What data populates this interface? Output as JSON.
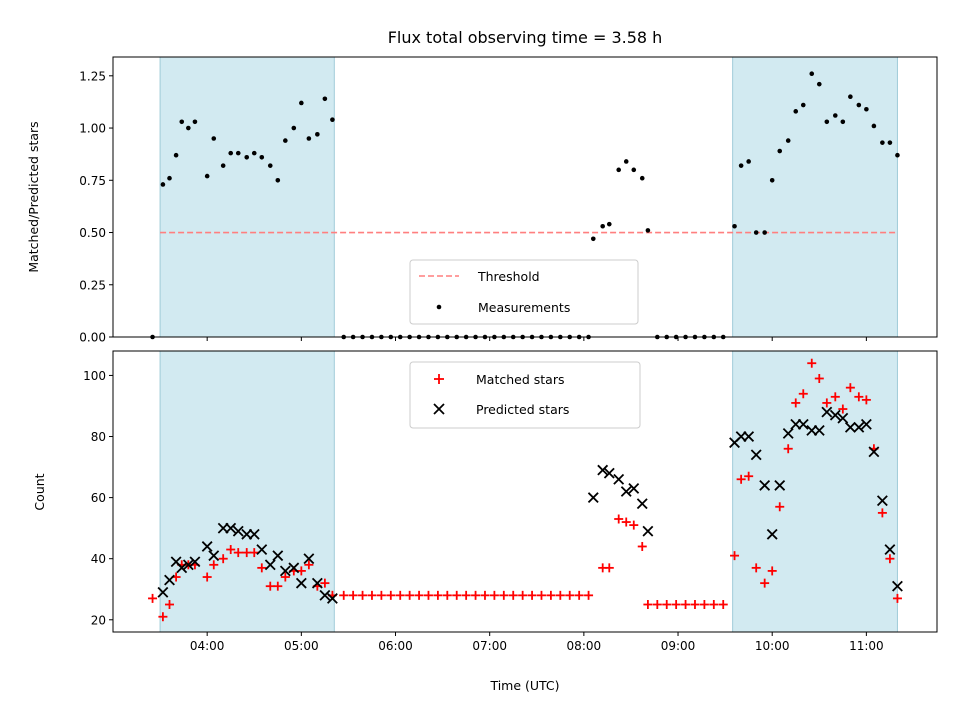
{
  "chart_data": [
    {
      "type": "scatter",
      "title": "Flux total observing time = 3.58 h",
      "ylabel": "Matched/Predicted stars",
      "xlabel": "",
      "x_unit": "hours UTC",
      "xlim": [
        3.0,
        11.75
      ],
      "ylim": [
        0.0,
        1.34
      ],
      "yticks": [
        "0.00",
        "0.25",
        "0.50",
        "0.75",
        "1.00",
        "1.25"
      ],
      "ytick_values": [
        0.0,
        0.25,
        0.5,
        0.75,
        1.0,
        1.25
      ],
      "shaded_spans": [
        [
          3.5,
          5.35
        ],
        [
          9.58,
          11.33
        ]
      ],
      "shade_color": "#add8e6",
      "grid": false,
      "legend_position": "lower center",
      "series": [
        {
          "name": "Threshold",
          "kind": "hline",
          "y": 0.5,
          "x_range": [
            3.5,
            11.33
          ],
          "color": "#ff7f7f",
          "style": "dashed"
        },
        {
          "name": "Measurements",
          "kind": "scatter",
          "marker": "dot",
          "color": "#000000",
          "points": [
            [
              3.42,
              0.0
            ],
            [
              3.53,
              0.73
            ],
            [
              3.6,
              0.76
            ],
            [
              3.67,
              0.87
            ],
            [
              3.73,
              1.03
            ],
            [
              3.8,
              1.0
            ],
            [
              3.87,
              1.03
            ],
            [
              4.0,
              0.77
            ],
            [
              4.07,
              0.95
            ],
            [
              4.17,
              0.82
            ],
            [
              4.25,
              0.88
            ],
            [
              4.33,
              0.88
            ],
            [
              4.42,
              0.86
            ],
            [
              4.5,
              0.88
            ],
            [
              4.58,
              0.86
            ],
            [
              4.67,
              0.82
            ],
            [
              4.75,
              0.75
            ],
            [
              4.83,
              0.94
            ],
            [
              4.92,
              1.0
            ],
            [
              5.0,
              1.12
            ],
            [
              5.08,
              0.95
            ],
            [
              5.17,
              0.97
            ],
            [
              5.25,
              1.14
            ],
            [
              5.33,
              1.04
            ],
            [
              5.45,
              0.0
            ],
            [
              5.55,
              0.0
            ],
            [
              5.65,
              0.0
            ],
            [
              5.75,
              0.0
            ],
            [
              5.85,
              0.0
            ],
            [
              5.95,
              0.0
            ],
            [
              6.05,
              0.0
            ],
            [
              6.15,
              0.0
            ],
            [
              6.25,
              0.0
            ],
            [
              6.35,
              0.0
            ],
            [
              6.45,
              0.0
            ],
            [
              6.55,
              0.0
            ],
            [
              6.65,
              0.0
            ],
            [
              6.75,
              0.0
            ],
            [
              6.85,
              0.0
            ],
            [
              6.95,
              0.0
            ],
            [
              7.05,
              0.0
            ],
            [
              7.15,
              0.0
            ],
            [
              7.25,
              0.0
            ],
            [
              7.35,
              0.0
            ],
            [
              7.45,
              0.0
            ],
            [
              7.55,
              0.0
            ],
            [
              7.65,
              0.0
            ],
            [
              7.75,
              0.0
            ],
            [
              7.85,
              0.0
            ],
            [
              7.95,
              0.0
            ],
            [
              8.05,
              0.0
            ],
            [
              8.1,
              0.47
            ],
            [
              8.2,
              0.53
            ],
            [
              8.27,
              0.54
            ],
            [
              8.37,
              0.8
            ],
            [
              8.45,
              0.84
            ],
            [
              8.53,
              0.8
            ],
            [
              8.62,
              0.76
            ],
            [
              8.68,
              0.51
            ],
            [
              8.78,
              0.0
            ],
            [
              8.88,
              0.0
            ],
            [
              8.98,
              0.0
            ],
            [
              9.08,
              0.0
            ],
            [
              9.18,
              0.0
            ],
            [
              9.28,
              0.0
            ],
            [
              9.38,
              0.0
            ],
            [
              9.48,
              0.0
            ],
            [
              9.6,
              0.53
            ],
            [
              9.67,
              0.82
            ],
            [
              9.75,
              0.84
            ],
            [
              9.83,
              0.5
            ],
            [
              9.92,
              0.5
            ],
            [
              10.0,
              0.75
            ],
            [
              10.08,
              0.89
            ],
            [
              10.17,
              0.94
            ],
            [
              10.25,
              1.08
            ],
            [
              10.33,
              1.11
            ],
            [
              10.42,
              1.26
            ],
            [
              10.5,
              1.21
            ],
            [
              10.58,
              1.03
            ],
            [
              10.67,
              1.06
            ],
            [
              10.75,
              1.03
            ],
            [
              10.83,
              1.15
            ],
            [
              10.92,
              1.11
            ],
            [
              11.0,
              1.09
            ],
            [
              11.08,
              1.01
            ],
            [
              11.17,
              0.93
            ],
            [
              11.25,
              0.93
            ],
            [
              11.33,
              0.87
            ]
          ]
        }
      ]
    },
    {
      "type": "scatter",
      "title": "",
      "ylabel": "Count",
      "xlabel": "Time (UTC)",
      "x_unit": "hours UTC",
      "xlim": [
        3.0,
        11.75
      ],
      "ylim": [
        16,
        108
      ],
      "xticks": [
        "04:00",
        "05:00",
        "06:00",
        "07:00",
        "08:00",
        "09:00",
        "10:00",
        "11:00"
      ],
      "xtick_values": [
        4,
        5,
        6,
        7,
        8,
        9,
        10,
        11
      ],
      "yticks": [
        "20",
        "40",
        "60",
        "80",
        "100"
      ],
      "ytick_values": [
        20,
        40,
        60,
        80,
        100
      ],
      "shaded_spans": [
        [
          3.5,
          5.35
        ],
        [
          9.58,
          11.33
        ]
      ],
      "shade_color": "#add8e6",
      "grid": false,
      "legend_position": "upper center",
      "series": [
        {
          "name": "Matched stars",
          "kind": "scatter",
          "marker": "plus",
          "color": "#ff0000",
          "points": [
            [
              3.42,
              27
            ],
            [
              3.53,
              21
            ],
            [
              3.6,
              25
            ],
            [
              3.67,
              34
            ],
            [
              3.73,
              38
            ],
            [
              3.8,
              38
            ],
            [
              3.87,
              38
            ],
            [
              4.0,
              34
            ],
            [
              4.07,
              38
            ],
            [
              4.17,
              40
            ],
            [
              4.25,
              43
            ],
            [
              4.33,
              42
            ],
            [
              4.42,
              42
            ],
            [
              4.5,
              42
            ],
            [
              4.58,
              37
            ],
            [
              4.67,
              31
            ],
            [
              4.75,
              31
            ],
            [
              4.83,
              34
            ],
            [
              4.92,
              36
            ],
            [
              5.0,
              36
            ],
            [
              5.08,
              38
            ],
            [
              5.17,
              31
            ],
            [
              5.25,
              32
            ],
            [
              5.33,
              28
            ],
            [
              5.45,
              28
            ],
            [
              5.55,
              28
            ],
            [
              5.65,
              28
            ],
            [
              5.75,
              28
            ],
            [
              5.85,
              28
            ],
            [
              5.95,
              28
            ],
            [
              6.05,
              28
            ],
            [
              6.15,
              28
            ],
            [
              6.25,
              28
            ],
            [
              6.35,
              28
            ],
            [
              6.45,
              28
            ],
            [
              6.55,
              28
            ],
            [
              6.65,
              28
            ],
            [
              6.75,
              28
            ],
            [
              6.85,
              28
            ],
            [
              6.95,
              28
            ],
            [
              7.05,
              28
            ],
            [
              7.15,
              28
            ],
            [
              7.25,
              28
            ],
            [
              7.35,
              28
            ],
            [
              7.45,
              28
            ],
            [
              7.55,
              28
            ],
            [
              7.65,
              28
            ],
            [
              7.75,
              28
            ],
            [
              7.85,
              28
            ],
            [
              7.95,
              28
            ],
            [
              8.05,
              28
            ],
            [
              8.2,
              37
            ],
            [
              8.27,
              37
            ],
            [
              8.37,
              53
            ],
            [
              8.45,
              52
            ],
            [
              8.53,
              51
            ],
            [
              8.62,
              44
            ],
            [
              8.68,
              25
            ],
            [
              8.78,
              25
            ],
            [
              8.88,
              25
            ],
            [
              8.98,
              25
            ],
            [
              9.08,
              25
            ],
            [
              9.18,
              25
            ],
            [
              9.28,
              25
            ],
            [
              9.38,
              25
            ],
            [
              9.48,
              25
            ],
            [
              9.6,
              41
            ],
            [
              9.67,
              66
            ],
            [
              9.75,
              67
            ],
            [
              9.83,
              37
            ],
            [
              9.92,
              32
            ],
            [
              10.0,
              36
            ],
            [
              10.08,
              57
            ],
            [
              10.17,
              76
            ],
            [
              10.25,
              91
            ],
            [
              10.33,
              94
            ],
            [
              10.42,
              104
            ],
            [
              10.5,
              99
            ],
            [
              10.58,
              91
            ],
            [
              10.67,
              93
            ],
            [
              10.75,
              89
            ],
            [
              10.83,
              96
            ],
            [
              10.92,
              93
            ],
            [
              11.0,
              92
            ],
            [
              11.08,
              76
            ],
            [
              11.17,
              55
            ],
            [
              11.25,
              40
            ],
            [
              11.33,
              27
            ]
          ]
        },
        {
          "name": "Predicted stars",
          "kind": "scatter",
          "marker": "x",
          "color": "#000000",
          "points": [
            [
              3.53,
              29
            ],
            [
              3.6,
              33
            ],
            [
              3.67,
              39
            ],
            [
              3.73,
              37
            ],
            [
              3.8,
              38
            ],
            [
              3.87,
              39
            ],
            [
              4.0,
              44
            ],
            [
              4.07,
              41
            ],
            [
              4.17,
              50
            ],
            [
              4.25,
              50
            ],
            [
              4.33,
              49
            ],
            [
              4.42,
              48
            ],
            [
              4.5,
              48
            ],
            [
              4.58,
              43
            ],
            [
              4.67,
              38
            ],
            [
              4.75,
              41
            ],
            [
              4.83,
              36
            ],
            [
              4.92,
              37
            ],
            [
              5.0,
              32
            ],
            [
              5.08,
              40
            ],
            [
              5.17,
              32
            ],
            [
              5.25,
              28
            ],
            [
              5.33,
              27
            ],
            [
              8.1,
              60
            ],
            [
              8.2,
              69
            ],
            [
              8.27,
              68
            ],
            [
              8.37,
              66
            ],
            [
              8.45,
              62
            ],
            [
              8.53,
              63
            ],
            [
              8.62,
              58
            ],
            [
              8.68,
              49
            ],
            [
              9.6,
              78
            ],
            [
              9.67,
              80
            ],
            [
              9.75,
              80
            ],
            [
              9.83,
              74
            ],
            [
              9.92,
              64
            ],
            [
              10.0,
              48
            ],
            [
              10.08,
              64
            ],
            [
              10.17,
              81
            ],
            [
              10.25,
              84
            ],
            [
              10.33,
              84
            ],
            [
              10.42,
              82
            ],
            [
              10.5,
              82
            ],
            [
              10.58,
              88
            ],
            [
              10.67,
              87
            ],
            [
              10.75,
              86
            ],
            [
              10.83,
              83
            ],
            [
              10.92,
              83
            ],
            [
              11.0,
              84
            ],
            [
              11.08,
              75
            ],
            [
              11.17,
              59
            ],
            [
              11.25,
              43
            ],
            [
              11.33,
              31
            ]
          ]
        }
      ]
    }
  ]
}
